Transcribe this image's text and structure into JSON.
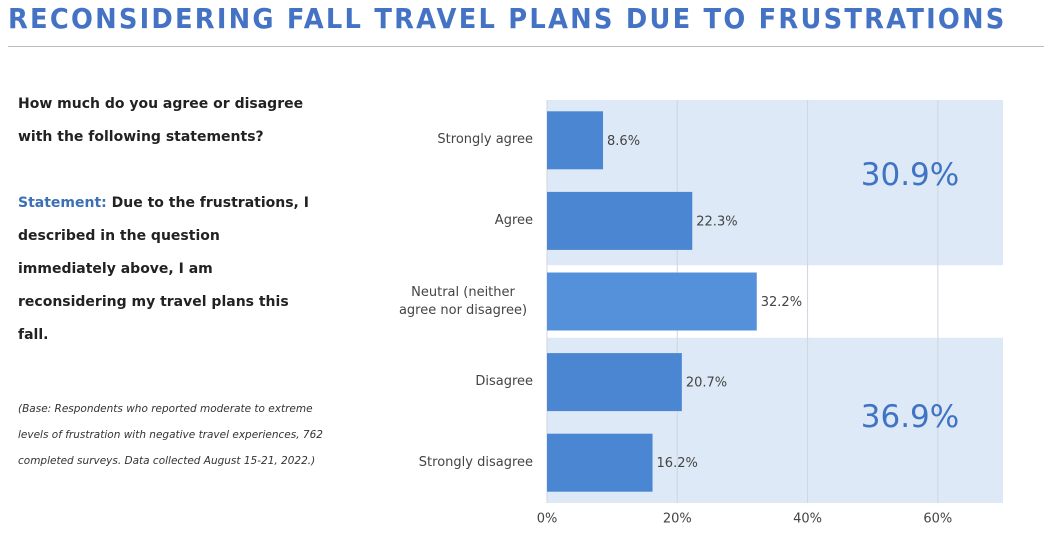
{
  "title": "RECONSIDERING FALL TRAVEL PLANS DUE TO FRUSTRATIONS",
  "question": "How much do you agree or disagree with the following statements?",
  "statement_label": "Statement:",
  "statement": "Due to the frustrations, I described in the question immediately above, I am reconsidering my travel plans this fall.",
  "base_note": "(Base: Respondents who reported moderate to extreme levels of frustration with negative travel experiences, 762 completed surveys. Data collected August 15-21, 2022.)",
  "chart_data": {
    "type": "bar",
    "orientation": "horizontal",
    "categories": [
      "Strongly agree",
      "Agree",
      "Neutral (neither agree nor disagree)",
      "Disagree",
      "Strongly disagree"
    ],
    "values": [
      8.6,
      22.3,
      32.2,
      20.7,
      16.2
    ],
    "value_labels": [
      "8.6%",
      "22.3%",
      "32.2%",
      "20.7%",
      "16.2%"
    ],
    "colors": [
      "#4a86d2",
      "#4a86d2",
      "#5590da",
      "#4a86d2",
      "#4a86d2"
    ],
    "xlim": [
      0,
      70
    ],
    "xticks": [
      {
        "value": 0,
        "label": "0%"
      },
      {
        "value": 20,
        "label": "20%"
      },
      {
        "value": 40,
        "label": "40%"
      },
      {
        "value": 60,
        "label": "60%"
      }
    ],
    "grid": true,
    "annotations": [
      "30.9%",
      "36.9%"
    ]
  }
}
